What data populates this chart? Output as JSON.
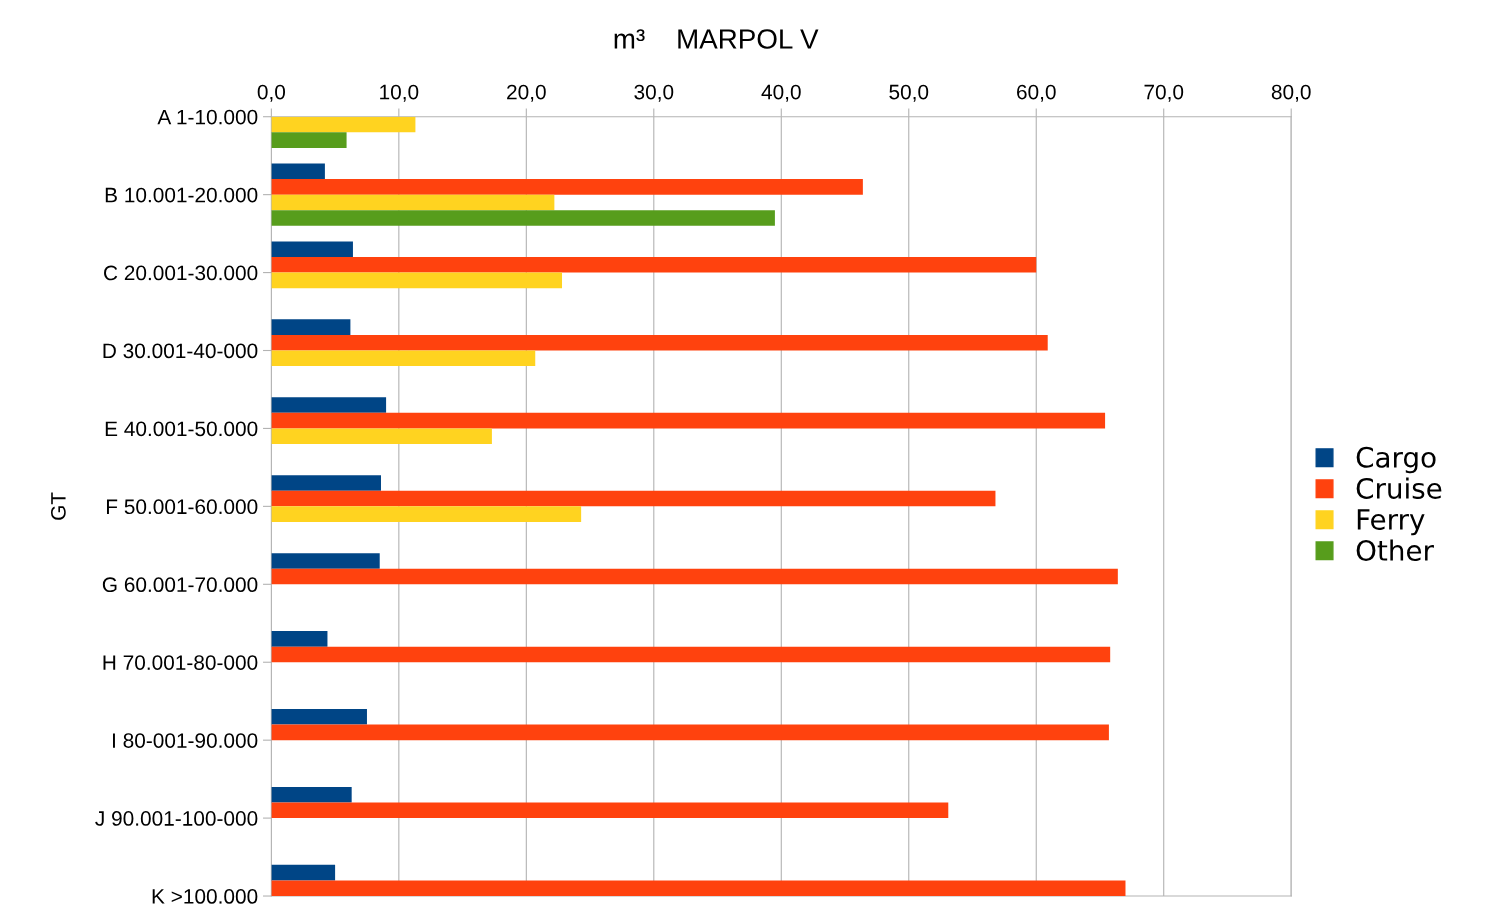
{
  "chart_data": {
    "type": "bar",
    "orientation": "horizontal",
    "title": "m³    MARPOL V",
    "ylabel": "GT",
    "categories": [
      "A 1-10.000",
      "B 10.001-20.000",
      "C 20.001-30.000",
      "D 30.001-40-000",
      "E 40.001-50.000",
      "F 50.001-60.000",
      "G 60.001-70.000",
      "H 70.001-80-000",
      "I 80-001-90.000",
      "J 90.001-100-000",
      "K >100.000"
    ],
    "series": [
      {
        "name": "Cargo",
        "color": "#004586",
        "values": [
          null,
          4.2,
          6.4,
          6.2,
          9.0,
          8.6,
          8.5,
          4.4,
          7.5,
          6.3,
          5.0
        ]
      },
      {
        "name": "Cruise",
        "color": "#ff420e",
        "values": [
          null,
          46.4,
          60.0,
          60.9,
          65.4,
          56.8,
          66.4,
          65.8,
          65.7,
          53.1,
          67.0
        ]
      },
      {
        "name": "Ferry",
        "color": "#ffd320",
        "values": [
          11.3,
          22.2,
          22.8,
          20.7,
          17.3,
          24.3,
          null,
          null,
          null,
          null,
          null
        ]
      },
      {
        "name": "Other",
        "color": "#579d1c",
        "values": [
          5.9,
          39.5,
          null,
          null,
          null,
          null,
          null,
          null,
          null,
          null,
          null
        ]
      }
    ],
    "xlim": [
      0,
      80
    ],
    "xticks": [
      {
        "value": 0,
        "label": "0,0"
      },
      {
        "value": 10,
        "label": "10,0"
      },
      {
        "value": 20,
        "label": "20,0"
      },
      {
        "value": 30,
        "label": "30,0"
      },
      {
        "value": 40,
        "label": "40,0"
      },
      {
        "value": 50,
        "label": "50,0"
      },
      {
        "value": 60,
        "label": "60,0"
      },
      {
        "value": 70,
        "label": "70,0"
      },
      {
        "value": 80,
        "label": "80,0"
      }
    ],
    "grid": "x",
    "legend": "right"
  }
}
